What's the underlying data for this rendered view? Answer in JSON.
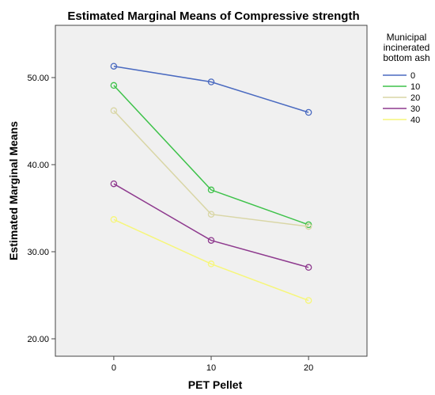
{
  "chart_data": {
    "type": "line",
    "title": "Estimated Marginal Means of Compressive strength",
    "xlabel": "PET Pellet",
    "ylabel": "Estimated Marginal Means",
    "x": [
      0,
      10,
      20
    ],
    "x_tick_labels": [
      "0",
      "10",
      "20"
    ],
    "xlim": [
      -6,
      26
    ],
    "ylim": [
      18,
      56
    ],
    "y_ticks": [
      20,
      30,
      40,
      50
    ],
    "y_tick_labels": [
      "20.00",
      "30.00",
      "40.00",
      "50.00"
    ],
    "grid": false,
    "legend": {
      "placement": "right",
      "title_lines": [
        "Municipal",
        "incinerated",
        "bottom ash"
      ]
    },
    "series": [
      {
        "name": "0",
        "color": "#4a6ac0",
        "values": [
          51.3,
          49.5,
          46.0
        ]
      },
      {
        "name": "10",
        "color": "#3ec24a",
        "values": [
          49.1,
          37.1,
          33.1
        ]
      },
      {
        "name": "20",
        "color": "#d9d6a6",
        "values": [
          46.2,
          34.3,
          32.9
        ]
      },
      {
        "name": "30",
        "color": "#8e3a8e",
        "values": [
          37.8,
          31.3,
          28.2
        ]
      },
      {
        "name": "40",
        "color": "#f6f67a",
        "values": [
          33.7,
          28.6,
          24.4
        ]
      }
    ],
    "plot_background": "#f0f0f0"
  }
}
